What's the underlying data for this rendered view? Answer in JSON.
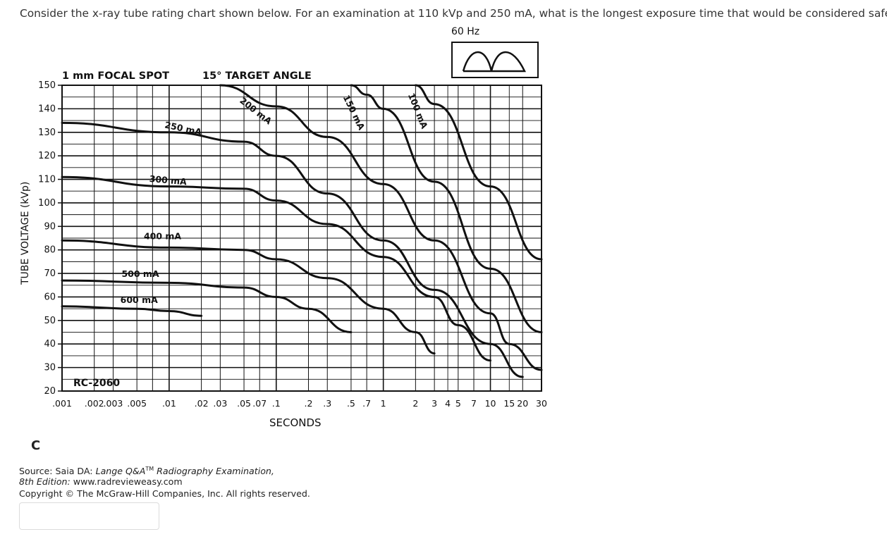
{
  "question": "Consider the x-ray tube rating chart shown below.  For an examination at 110 kVp and 250 mA, what is the longest exposure time that would be considered safe?",
  "option_letter": "C",
  "source": {
    "prefix": "Source: Saia DA: ",
    "book_title": "Lange Q&A",
    "tm": "TM",
    "book_subtitle": " Radiography Examination,",
    "edition": "8th Edition:",
    "url": " www.radrevieweasy.com",
    "copyright": "Copyright © The McGraw-Hill Companies, Inc. All rights reserved."
  },
  "answer": {
    "value": ""
  },
  "chart_data": {
    "type": "line",
    "frequency_label": "60 Hz",
    "waveform_icon": "full-wave-rectified-waveform",
    "header_left": "1 mm FOCAL SPOT",
    "header_right": "15° TARGET ANGLE",
    "model": "RC-2060",
    "xlabel": "SECONDS",
    "ylabel": "TUBE VOLTAGE (kVp)",
    "x_scale": "log",
    "xlim": [
      0.001,
      30
    ],
    "ylim": [
      20,
      150
    ],
    "grid": true,
    "y_ticks": [
      150,
      140,
      130,
      120,
      110,
      100,
      90,
      80,
      70,
      60,
      50,
      40,
      30,
      20
    ],
    "x_tick_labels": [
      ".001",
      ".002",
      ".003",
      ".005",
      ".01",
      ".02",
      ".03",
      ".05",
      ".07",
      ".1",
      ".2",
      ".3",
      ".5",
      ".7",
      "1",
      "2",
      "3",
      "4",
      "5",
      "7",
      "10",
      "15",
      "20",
      "30"
    ],
    "series": [
      {
        "name": "600 mA",
        "x": [
          0.001,
          0.005,
          0.01,
          0.02
        ],
        "y": [
          56,
          55,
          54,
          52
        ]
      },
      {
        "name": "500 mA",
        "x": [
          0.001,
          0.01,
          0.05,
          0.1,
          0.2,
          0.5
        ],
        "y": [
          67,
          66,
          64,
          60,
          55,
          45
        ]
      },
      {
        "name": "400 mA",
        "x": [
          0.001,
          0.01,
          0.05,
          0.1,
          0.3,
          1,
          2,
          3
        ],
        "y": [
          84,
          81,
          80,
          76,
          68,
          55,
          45,
          36
        ]
      },
      {
        "name": "300 mA",
        "x": [
          0.001,
          0.01,
          0.05,
          0.1,
          0.3,
          1,
          3,
          5,
          10
        ],
        "y": [
          111,
          107,
          106,
          101,
          91,
          77,
          60,
          48,
          33
        ]
      },
      {
        "name": "250 mA",
        "x": [
          0.001,
          0.01,
          0.05,
          0.1,
          0.3,
          1,
          3,
          10,
          20
        ],
        "y": [
          134,
          130,
          126,
          120,
          104,
          84,
          63,
          40,
          26
        ]
      },
      {
        "name": "200 mA",
        "x": [
          0.03,
          0.1,
          0.3,
          1,
          3,
          10,
          15,
          30
        ],
        "y": [
          150,
          141,
          128,
          108,
          84,
          53,
          40,
          29
        ]
      },
      {
        "name": "150 mA",
        "x": [
          0.5,
          0.7,
          1,
          3,
          10,
          30
        ],
        "y": [
          150,
          146,
          140,
          109,
          72,
          45
        ]
      },
      {
        "name": "100 mA",
        "x": [
          2,
          3,
          10,
          30
        ],
        "y": [
          150,
          142,
          107,
          76
        ]
      }
    ]
  }
}
